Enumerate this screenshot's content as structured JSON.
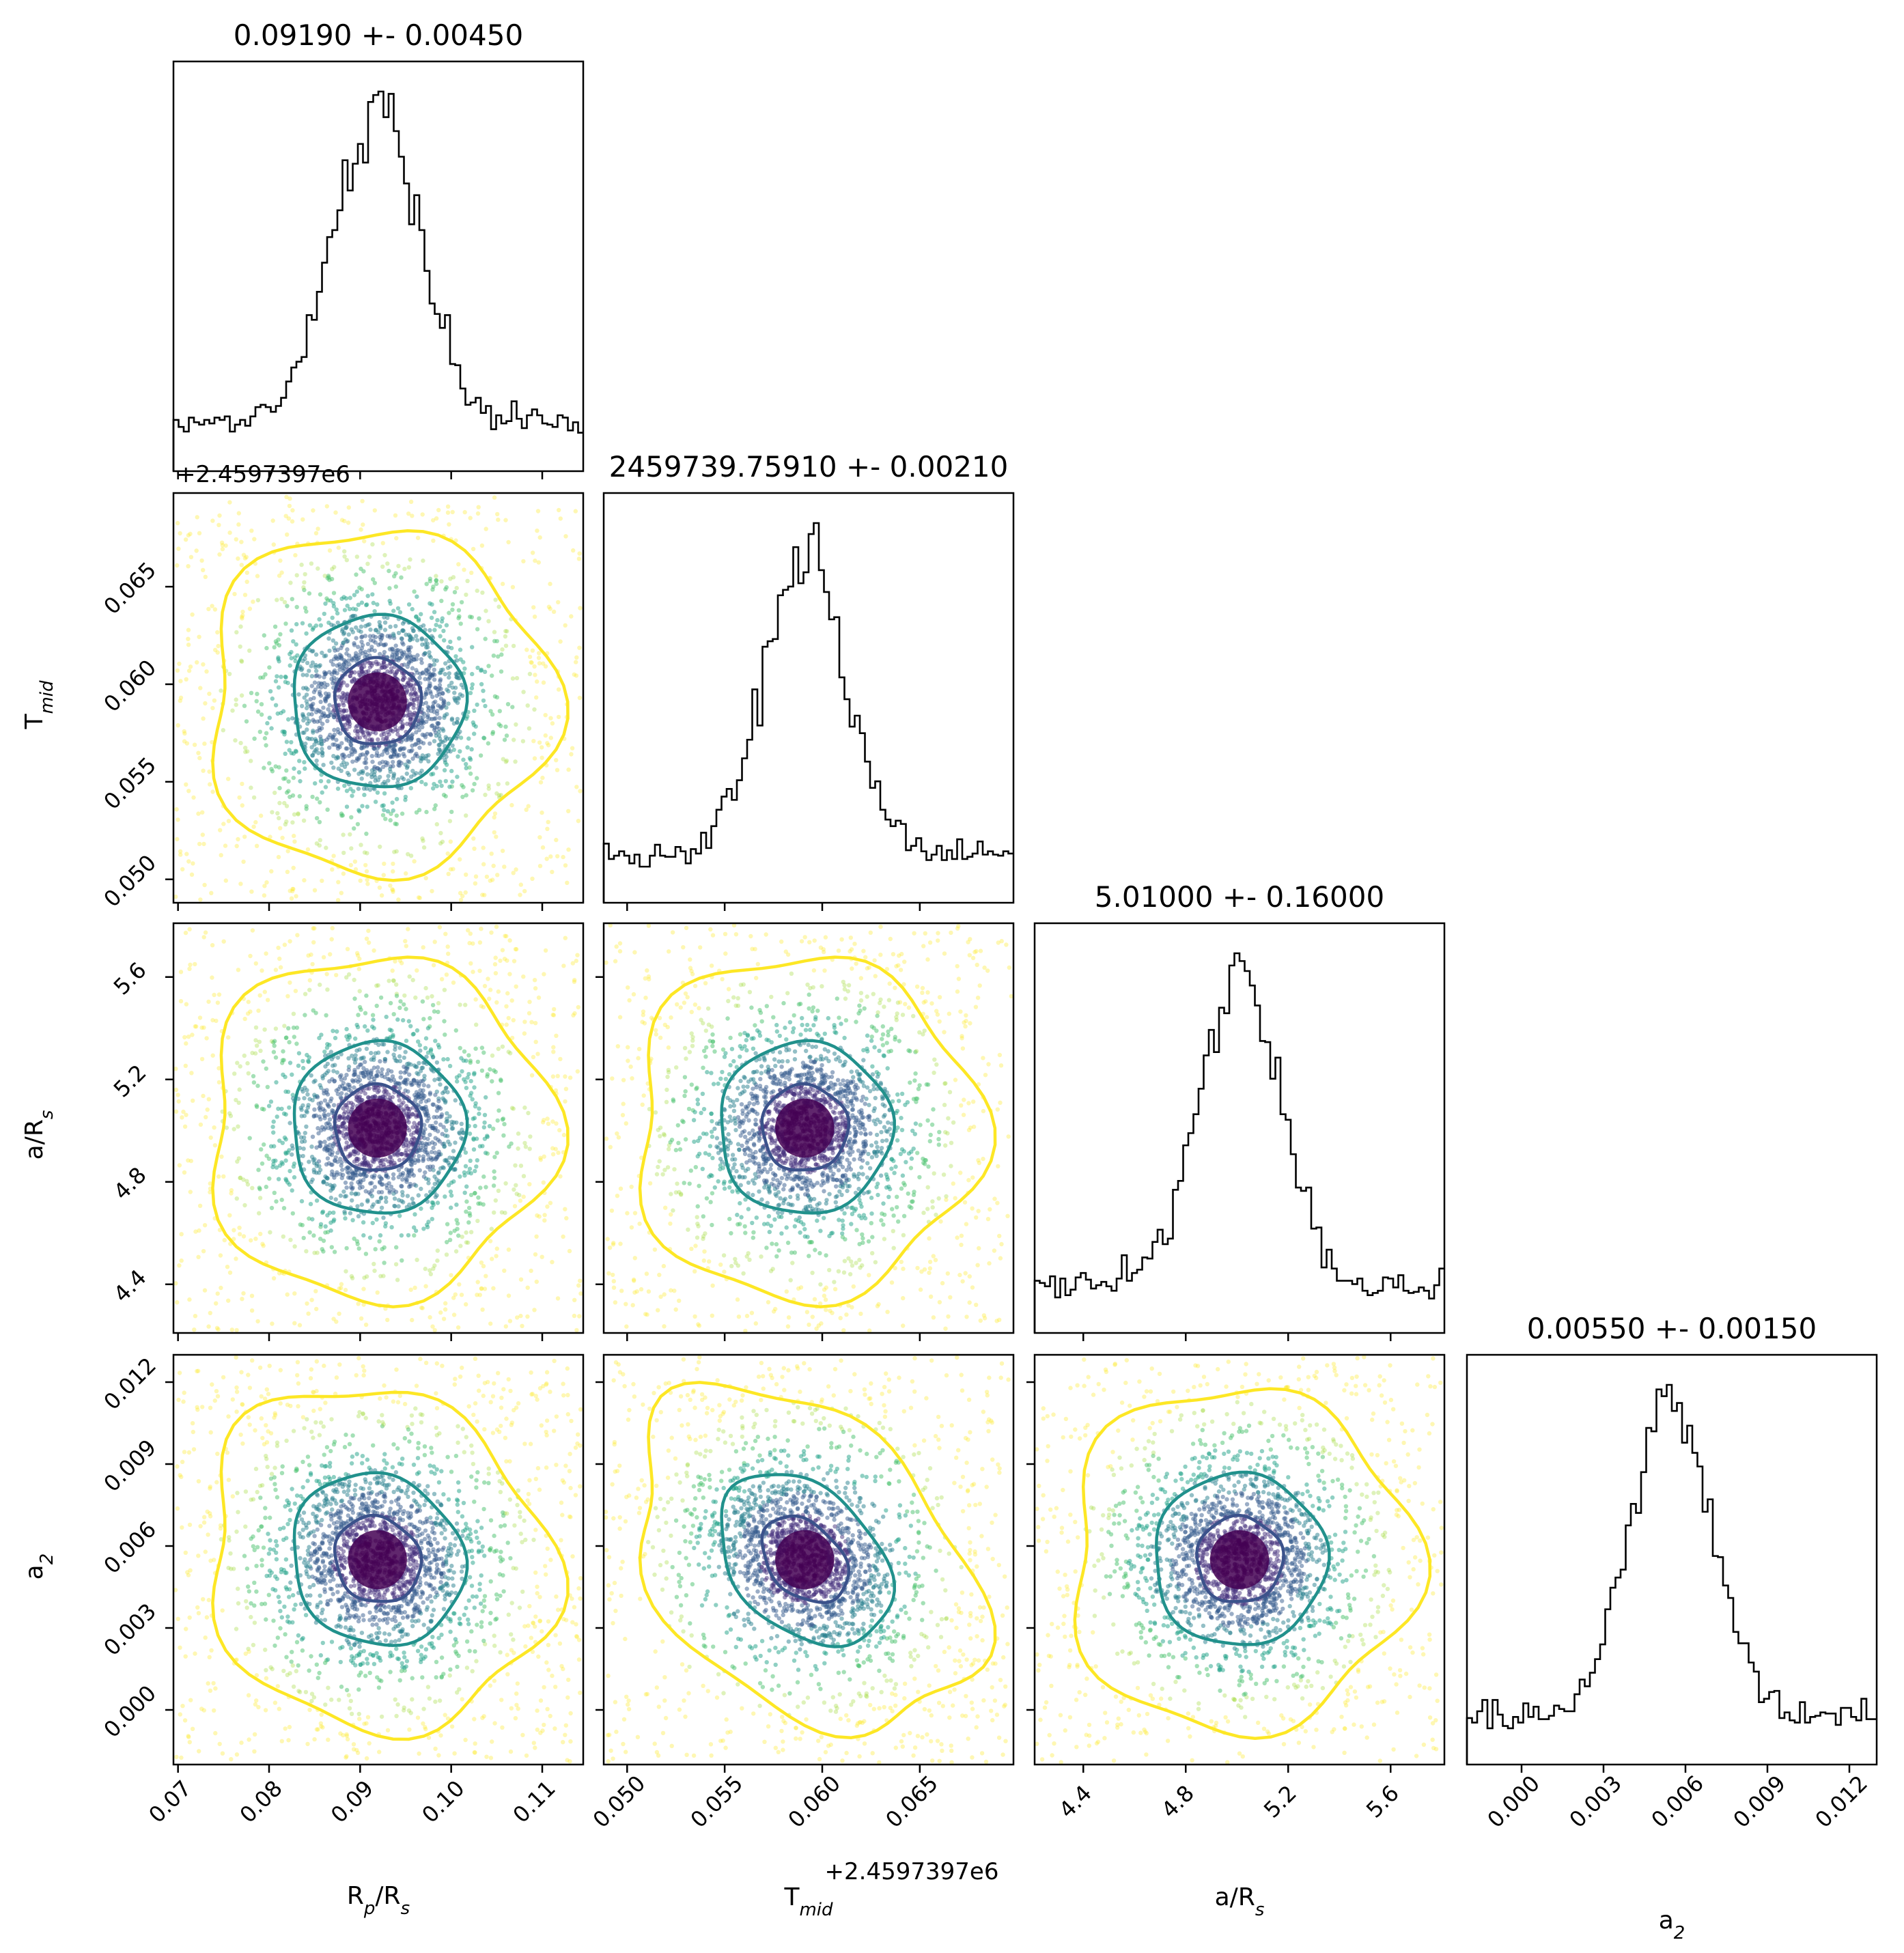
{
  "chart_data": {
    "type": "scatter",
    "layout": "corner-plot",
    "parameters": [
      {
        "key": "rp_rs",
        "label_main": "R",
        "label_sub1": "p",
        "label_mid": "/R",
        "label_sub2": "s",
        "title": "0.09190 +- 0.00450",
        "mean": 0.0919,
        "sigma": 0.0045,
        "range": [
          0.0695,
          0.1145
        ],
        "ticks": [
          0.07,
          0.08,
          0.09,
          0.1,
          0.11
        ],
        "tick_labels": [
          "0.07",
          "0.08",
          "0.09",
          "0.10",
          "0.11"
        ],
        "offset_text": ""
      },
      {
        "key": "t_mid",
        "label_main": "T",
        "label_sub1": "mid",
        "label_mid": "",
        "label_sub2": "",
        "title": "2459739.75910 +- 0.00210",
        "mean": 0.0591,
        "sigma": 0.0021,
        "range": [
          0.0488,
          0.0698
        ],
        "ticks": [
          0.05,
          0.055,
          0.06,
          0.065
        ],
        "tick_labels": [
          "0.050",
          "0.055",
          "0.060",
          "0.065"
        ],
        "offset_text": "+2.4597397e6"
      },
      {
        "key": "a_rs",
        "label_main": "a/R",
        "label_sub1": "",
        "label_mid": "",
        "label_sub2": "s",
        "title": "5.01000 +- 0.16000",
        "mean": 5.01,
        "sigma": 0.16,
        "range": [
          4.21,
          5.81
        ],
        "ticks": [
          4.4,
          4.8,
          5.2,
          5.6
        ],
        "tick_labels": [
          "4.4",
          "4.8",
          "5.2",
          "5.6"
        ],
        "offset_text": ""
      },
      {
        "key": "a2",
        "label_main": "a",
        "label_sub1": "",
        "label_mid": "",
        "label_sub2": "2",
        "title": "0.00550 +- 0.00150",
        "mean": 0.0055,
        "sigma": 0.0015,
        "range": [
          -0.002,
          0.013
        ],
        "ticks": [
          0.0,
          0.003,
          0.006,
          0.009,
          0.012
        ],
        "tick_labels": [
          "0.000",
          "0.003",
          "0.006",
          "0.009",
          "0.012"
        ],
        "offset_text": ""
      }
    ],
    "correlations": {
      "1-0": 0.0,
      "2-0": 0.0,
      "2-1": 0.0,
      "3-0": -0.1,
      "3-1": -0.35,
      "3-2": 0.0
    },
    "contour_levels_sigma": [
      0.5,
      1.0,
      2.0
    ],
    "colors": {
      "contour_inner": "#3b528b",
      "contour_middle": "#21918c",
      "contour_outer": "#fde725",
      "points": [
        "#440154",
        "#46327e",
        "#365c8d",
        "#277f8e",
        "#1fa187",
        "#4ac16d",
        "#a0da39",
        "#fde725"
      ],
      "histogram": "#000000"
    },
    "grid": false,
    "legend": "none"
  }
}
